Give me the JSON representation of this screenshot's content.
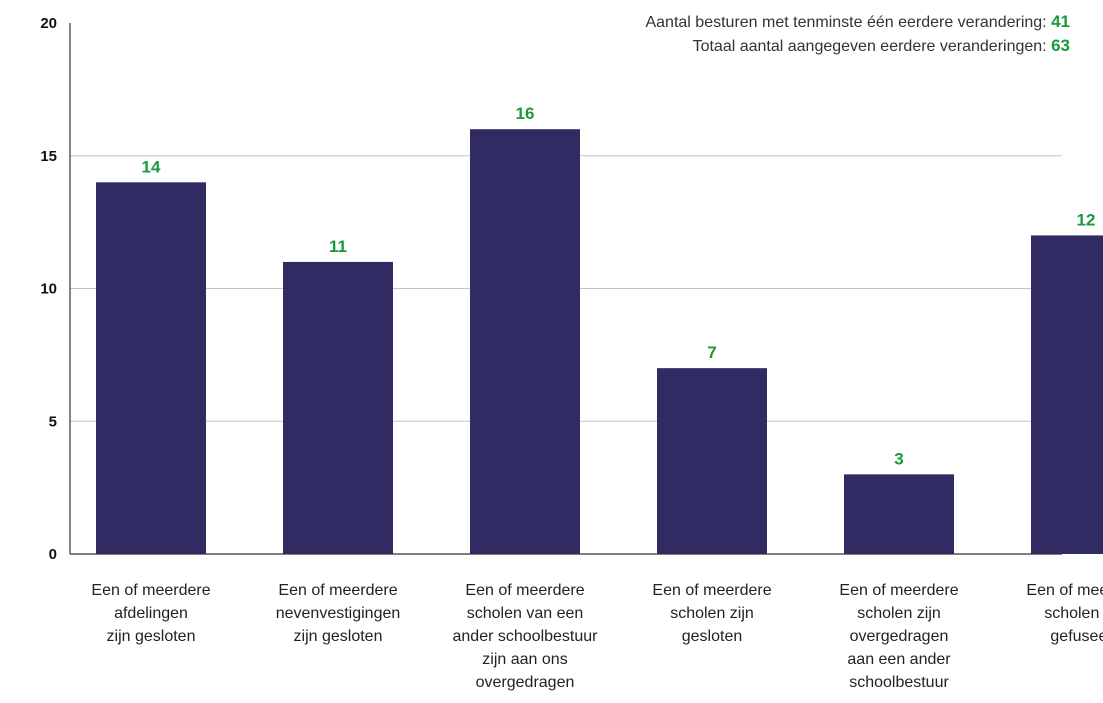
{
  "chart_data": {
    "type": "bar",
    "categories": [
      [
        "Een of meerdere",
        "afdelingen",
        "zijn gesloten"
      ],
      [
        "Een of meerdere",
        "nevenvestigingen",
        "zijn gesloten"
      ],
      [
        "Een of meerdere",
        "scholen van een",
        "ander schoolbestuur",
        "zijn aan ons",
        "overgedragen"
      ],
      [
        "Een of meerdere",
        "scholen zijn",
        "gesloten"
      ],
      [
        "Een of meerdere",
        "scholen zijn",
        "overgedragen",
        "aan een ander",
        "schoolbestuur"
      ],
      [
        "Een of meerdere",
        "scholen zijn",
        "gefuseerd"
      ]
    ],
    "values": [
      14,
      11,
      16,
      7,
      3,
      12
    ],
    "ylim": [
      0,
      20
    ],
    "yticks": [
      0,
      5,
      10,
      15,
      20
    ],
    "grid": true,
    "title": "",
    "xlabel": "",
    "ylabel": "",
    "colors": {
      "bar": "#302c63",
      "value_label": "#1a9a3c",
      "grid": "#c4c4c4",
      "axis": "#333333"
    }
  },
  "info": {
    "line1_label": "Aantal besturen met tenminste één eerdere verandering:",
    "line1_value": "41",
    "line2_label": "Totaal aantal aangegeven eerdere veranderingen:",
    "line2_value": "63"
  }
}
